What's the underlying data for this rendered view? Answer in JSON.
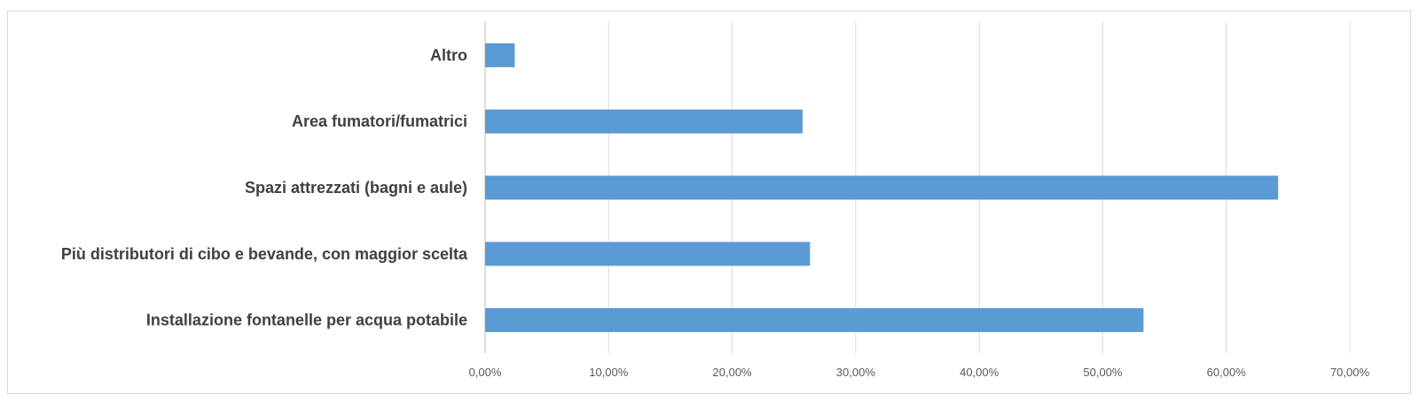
{
  "chart_data": {
    "type": "bar",
    "orientation": "horizontal",
    "categories": [
      "Altro",
      "Area fumatori/fumatrici",
      "Spazi attrezzati (bagni e aule)",
      "Più distributori di cibo e bevande, con maggior scelta",
      "Installazione fontanelle per acqua potabile"
    ],
    "values": [
      2.4,
      25.7,
      64.2,
      26.3,
      53.3
    ],
    "xlim": [
      0,
      70
    ],
    "x_ticks": [
      "0,00%",
      "10,00%",
      "20,00%",
      "30,00%",
      "40,00%",
      "50,00%",
      "60,00%",
      "70,00%"
    ],
    "title": "",
    "xlabel": "",
    "ylabel": "",
    "grid": "vertical",
    "bar_color": "#5b9bd5"
  }
}
